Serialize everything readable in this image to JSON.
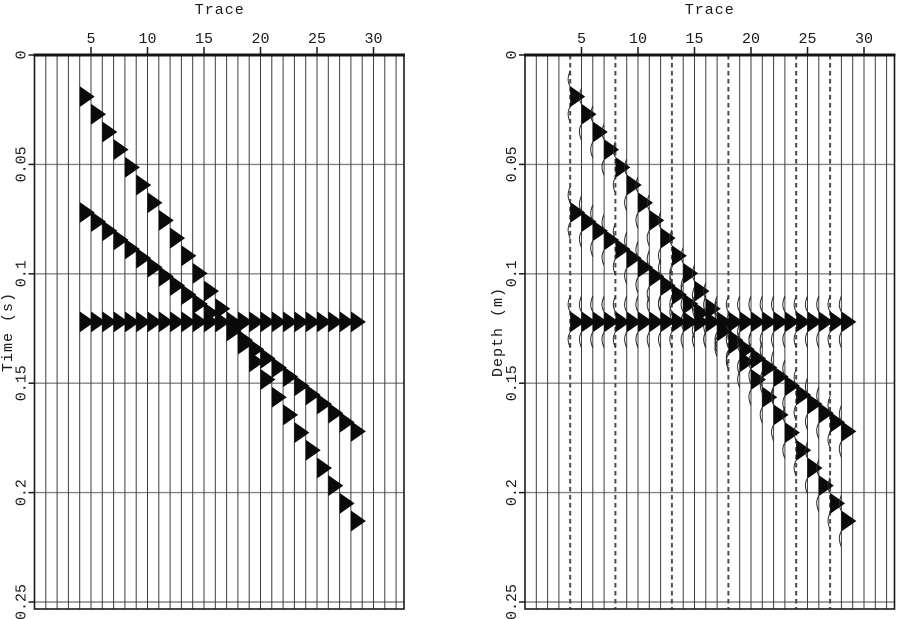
{
  "figure": {
    "background": "#ffffff",
    "ink_color": "#1a1a1a",
    "grid_color": "#858585",
    "trace_line_color": "#3d3d3d",
    "wiggle_fill_color": "#0a0a0a"
  },
  "panels": [
    {
      "id": "left",
      "title": "Trace",
      "y_label": "Time (s)",
      "noise": false,
      "dashed_traces": []
    },
    {
      "id": "right",
      "title": "Trace",
      "y_label": "Depth (m)",
      "noise": true,
      "dashed_traces": [
        4,
        8,
        13,
        18,
        24,
        27
      ]
    }
  ],
  "chart_data": {
    "type": "wiggle-seismic-variable-area",
    "panel_count": 2,
    "x_axis": {
      "label": "Trace",
      "ticks": [
        5,
        10,
        15,
        20,
        25,
        30
      ],
      "num_traces": 32,
      "range": [
        0,
        33
      ]
    },
    "y_axes": [
      {
        "label": "Time (s)",
        "ticks": [
          0,
          0.05,
          0.1,
          0.15,
          0.2,
          0.25
        ],
        "tick_labels": [
          "0",
          "0.05",
          "0.1",
          "0.15",
          "0.2",
          "0.25"
        ],
        "range": [
          0,
          0.253
        ],
        "grid": true
      },
      {
        "label": "Depth (m)",
        "ticks": [
          0,
          0.05,
          0.1,
          0.15,
          0.2,
          0.25
        ],
        "tick_labels": [
          "0",
          "0.05",
          "0.1",
          "0.15",
          "0.2",
          "0.25"
        ],
        "range": [
          0,
          0.253
        ],
        "grid": true
      }
    ],
    "events": [
      {
        "name": "dipping-event-steep",
        "trace_start": 4,
        "trace_end": 28,
        "value_start": 0.019,
        "value_end": 0.213
      },
      {
        "name": "dipping-event-shallow",
        "trace_start": 4,
        "trace_end": 28,
        "value_start": 0.072,
        "value_end": 0.172
      },
      {
        "name": "flat-event",
        "trace_start": 4,
        "trace_end": 28,
        "value_start": 0.122,
        "value_end": 0.122
      }
    ],
    "legend": false
  }
}
